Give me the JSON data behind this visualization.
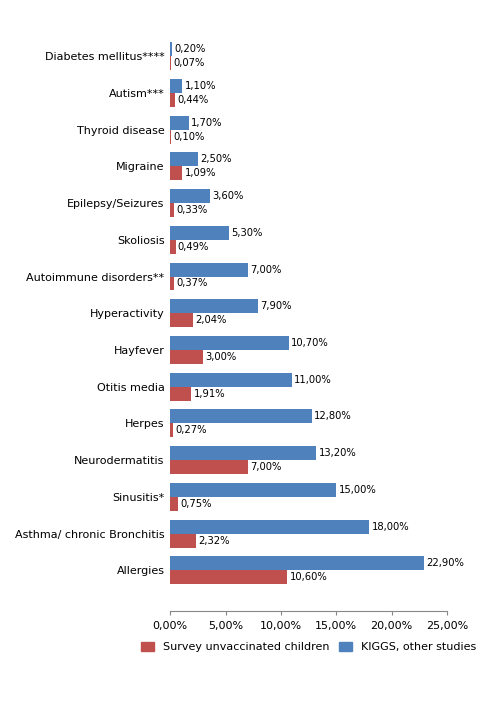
{
  "categories": [
    "Diabetes mellitus****",
    "Autism***",
    "Thyroid disease",
    "Migraine",
    "Epilepsy/Seizures",
    "Skoliosis",
    "Autoimmune disorders**",
    "Hyperactivity",
    "Hayfever",
    "Otitis media",
    "Herpes",
    "Neurodermatitis",
    "Sinusitis*",
    "Asthma/ chronic Bronchitis",
    "Allergies"
  ],
  "unvaccinated": [
    0.07,
    0.44,
    0.1,
    1.09,
    0.33,
    0.49,
    0.37,
    2.04,
    3.0,
    1.91,
    0.27,
    7.0,
    0.75,
    2.32,
    10.6
  ],
  "vaccinated": [
    0.2,
    1.1,
    1.7,
    2.5,
    3.6,
    5.3,
    7.0,
    7.9,
    10.7,
    11.0,
    12.8,
    13.2,
    15.0,
    18.0,
    22.9
  ],
  "unvaccinated_labels": [
    "0,07%",
    "0,44%",
    "0,10%",
    "1,09%",
    "0,33%",
    "0,49%",
    "0,37%",
    "2,04%",
    "3,00%",
    "1,91%",
    "0,27%",
    "7,00%",
    "0,75%",
    "2,32%",
    "10,60%"
  ],
  "vaccinated_labels": [
    "0,20%",
    "1,10%",
    "1,70%",
    "2,50%",
    "3,60%",
    "5,30%",
    "7,00%",
    "7,90%",
    "10,70%",
    "11,00%",
    "12,80%",
    "13,20%",
    "15,00%",
    "18,00%",
    "22,90%"
  ],
  "color_unvaccinated": "#C0504D",
  "color_vaccinated": "#4F81BD",
  "legend_unvaccinated": "Survey unvaccinated children",
  "legend_vaccinated": "KIGGS, other studies",
  "xlim": [
    0,
    25
  ],
  "xtick_labels": [
    "0,00%",
    "5,00%",
    "10,00%",
    "15,00%",
    "20,00%",
    "25,00%"
  ],
  "xtick_values": [
    0,
    5,
    10,
    15,
    20,
    25
  ],
  "bar_height": 0.38,
  "label_fontsize": 7.2,
  "tick_fontsize": 8,
  "legend_fontsize": 8,
  "background_color": "#ffffff"
}
